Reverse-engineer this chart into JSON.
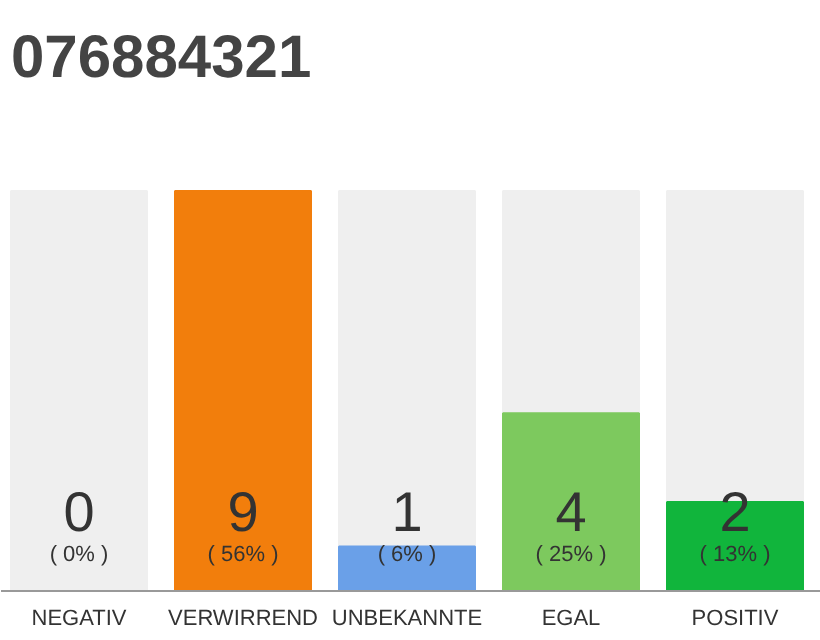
{
  "chart_data": {
    "type": "bar",
    "title": "076884321",
    "categories": [
      "NEGATIV",
      "VERWIRREND",
      "UNBEKANNTE",
      "EGAL",
      "POSITIV"
    ],
    "values": [
      0,
      9,
      1,
      4,
      2
    ],
    "colors": [
      "#cccccc",
      "#f27e0c",
      "#6aa0e8",
      "#7dc95e",
      "#11b53c"
    ],
    "ylim": [
      0,
      9
    ],
    "data_labels": true,
    "annotations": [
      "( 0% )",
      "( 56% )",
      "( 6% )",
      "( 25% )",
      "( 13% )"
    ],
    "grid": false
  }
}
